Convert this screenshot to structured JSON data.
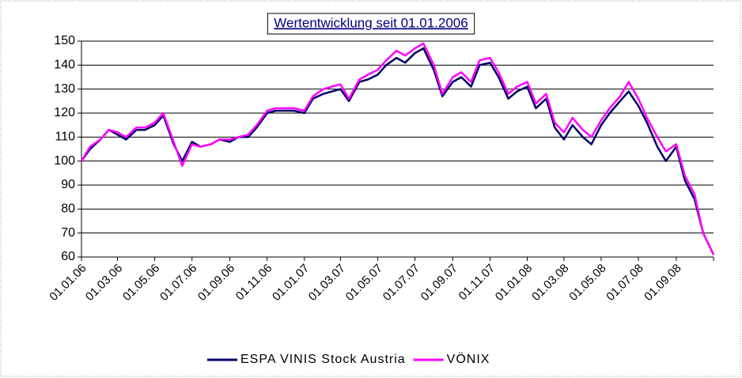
{
  "chart_data": {
    "type": "line",
    "title": "Wertentwicklung seit 01.01.2006",
    "x": [
      "01.01.06",
      "15.01.06",
      "01.02.06",
      "15.02.06",
      "01.03.06",
      "15.03.06",
      "01.04.06",
      "15.04.06",
      "01.05.06",
      "15.05.06",
      "01.06.06",
      "15.06.06",
      "01.07.06",
      "15.07.06",
      "01.08.06",
      "15.08.06",
      "01.09.06",
      "15.09.06",
      "01.10.06",
      "15.10.06",
      "01.11.06",
      "15.11.06",
      "01.12.06",
      "15.12.06",
      "01.01.07",
      "15.01.07",
      "01.02.07",
      "15.02.07",
      "01.03.07",
      "15.03.07",
      "01.04.07",
      "15.04.07",
      "01.05.07",
      "15.05.07",
      "01.06.07",
      "15.06.07",
      "01.07.07",
      "15.07.07",
      "01.08.07",
      "15.08.07",
      "01.09.07",
      "15.09.07",
      "01.10.07",
      "15.10.07",
      "01.11.07",
      "15.11.07",
      "01.12.07",
      "15.12.07",
      "01.01.08",
      "15.01.08",
      "01.02.08",
      "15.02.08",
      "01.03.08",
      "15.03.08",
      "01.04.08",
      "15.04.08",
      "01.05.08",
      "15.05.08",
      "01.06.08",
      "15.06.08",
      "01.07.08",
      "15.07.08",
      "01.08.08",
      "15.08.08",
      "01.09.08",
      "15.09.08",
      "01.10.08",
      "15.10.08",
      "01.11.08"
    ],
    "series": [
      {
        "name": "ESPA VINIS Stock Austria",
        "color": "#000066",
        "values": [
          100,
          105,
          109,
          113,
          111,
          109,
          113,
          113,
          115,
          119,
          107,
          100,
          108,
          106,
          107,
          109,
          108,
          110,
          110,
          114,
          120,
          121,
          121,
          121,
          120,
          126,
          128,
          129,
          130,
          125,
          133,
          134,
          136,
          140,
          143,
          141,
          145,
          147,
          138,
          127,
          133,
          135,
          131,
          140,
          141,
          135,
          126,
          129,
          131,
          122,
          126,
          114,
          109,
          115,
          110,
          107,
          115,
          120,
          125,
          129,
          123,
          116,
          106,
          100,
          106,
          92,
          84,
          70,
          61
        ]
      },
      {
        "name": "VÖNIX",
        "color": "#ff00ff",
        "values": [
          100,
          106,
          109,
          113,
          112,
          110,
          114,
          114,
          116,
          120,
          108,
          98,
          107,
          106,
          107,
          109,
          109,
          110,
          111,
          115,
          121,
          122,
          122,
          122,
          121,
          127,
          130,
          131,
          132,
          126,
          134,
          136,
          138,
          142,
          146,
          144,
          147,
          149,
          140,
          128,
          135,
          137,
          133,
          142,
          143,
          137,
          128,
          131,
          133,
          124,
          128,
          116,
          112,
          118,
          113,
          110,
          117,
          122,
          127,
          133,
          126,
          118,
          110,
          104,
          107,
          94,
          86,
          70,
          61
        ]
      }
    ],
    "xlim": [
      "01.01.06",
      "01.11.08"
    ],
    "xticks": [
      "01.01.06",
      "01.03.06",
      "01.05.06",
      "01.07.06",
      "01.09.06",
      "01.11.06",
      "01.01.07",
      "01.03.07",
      "01.05.07",
      "01.07.07",
      "01.09.07",
      "01.11.07",
      "01.01.08",
      "01.03.08",
      "01.05.08",
      "01.07.08",
      "01.09.08"
    ],
    "ylim": [
      60,
      150
    ],
    "yticks": [
      60,
      70,
      80,
      90,
      100,
      110,
      120,
      130,
      140,
      150
    ],
    "grid": true,
    "legend": "bottom"
  }
}
